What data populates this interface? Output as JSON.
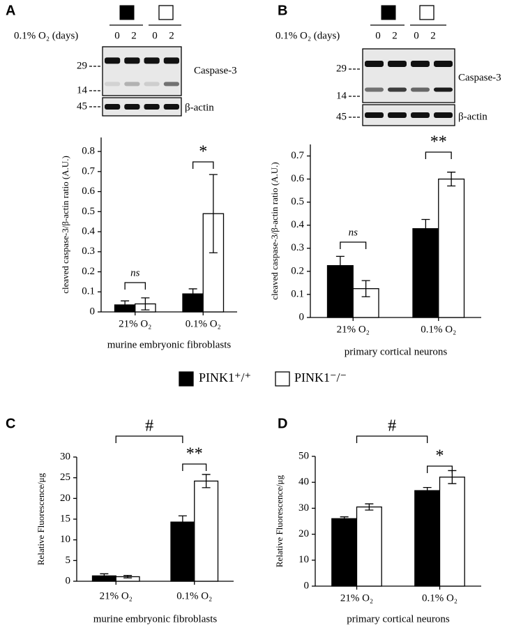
{
  "panel_letters": [
    "A",
    "B",
    "C",
    "D"
  ],
  "blots": [
    {
      "condition_label": "0.1% O₂ (days)",
      "lanes": [
        "0",
        "2",
        "0",
        "2"
      ],
      "bands": [
        "Caspase-3",
        "β-actin"
      ],
      "markers": [
        "29",
        "14",
        "45"
      ]
    },
    {
      "condition_label": "0.1% O₂ (days)",
      "lanes": [
        "0",
        "2",
        "0",
        "2"
      ],
      "bands": [
        "Caspase-3",
        "β-actin"
      ],
      "markers": [
        "29",
        "14",
        "45"
      ]
    }
  ],
  "chart_data": [
    {
      "type": "bar",
      "y_label": "cleaved caspase-3/β-actin ratio (A.U.)",
      "x_label": "murine embryonic fibroblasts",
      "categories": [
        "21% O₂",
        "0.1% O₂"
      ],
      "series": [
        {
          "name": "PINK1⁺/⁺",
          "color": "#000000",
          "values": [
            0.035,
            0.09
          ],
          "errors": [
            0.02,
            0.025
          ]
        },
        {
          "name": "PINK1⁻/⁻",
          "color": "#ffffff",
          "values": [
            0.04,
            0.49
          ],
          "errors": [
            0.03,
            0.195
          ]
        }
      ],
      "ylim": [
        0,
        0.87
      ],
      "yticks": [
        0,
        0.1,
        0.2,
        0.3,
        0.4,
        0.5,
        0.6,
        0.7,
        0.8
      ],
      "annotations": [
        "ns",
        "*"
      ]
    },
    {
      "type": "bar",
      "y_label": "cleaved caspase-3/β-actin ratio (A.U.)",
      "x_label": "primary cortical neurons",
      "categories": [
        "21% O₂",
        "0.1% O₂"
      ],
      "series": [
        {
          "name": "PINK1⁺/⁺",
          "color": "#000000",
          "values": [
            0.225,
            0.385
          ],
          "errors": [
            0.04,
            0.04
          ]
        },
        {
          "name": "PINK1⁻/⁻",
          "color": "#ffffff",
          "values": [
            0.125,
            0.6
          ],
          "errors": [
            0.035,
            0.03
          ]
        }
      ],
      "ylim": [
        0,
        0.75
      ],
      "yticks": [
        0,
        0.1,
        0.2,
        0.3,
        0.4,
        0.5,
        0.6,
        0.7
      ],
      "annotations": [
        "ns",
        "**"
      ]
    },
    {
      "type": "bar",
      "y_label": "Relative Fluorescence/μg",
      "x_label": "murine embryonic fibroblasts",
      "categories": [
        "21% O₂",
        "0.1% O₂"
      ],
      "series": [
        {
          "name": "PINK1⁺/⁺",
          "color": "#000000",
          "values": [
            1.3,
            14.3
          ],
          "errors": [
            0.5,
            1.5
          ]
        },
        {
          "name": "PINK1⁻/⁻",
          "color": "#ffffff",
          "values": [
            1.1,
            24.2
          ],
          "errors": [
            0.3,
            1.6
          ]
        }
      ],
      "ylim": [
        0,
        30
      ],
      "yticks": [
        0,
        5,
        10,
        15,
        20,
        25,
        30
      ],
      "annotations": [
        "#",
        "**"
      ]
    },
    {
      "type": "bar",
      "y_label": "Relative Fluorescence/μg",
      "x_label": "primary cortical neurons",
      "categories": [
        "21% O₂",
        "0.1% O₂"
      ],
      "series": [
        {
          "name": "PINK1⁺/⁺",
          "color": "#000000",
          "values": [
            26,
            36.8
          ],
          "errors": [
            0.7,
            1.2
          ]
        },
        {
          "name": "PINK1⁻/⁻",
          "color": "#ffffff",
          "values": [
            30.5,
            42
          ],
          "errors": [
            1.2,
            2.5
          ]
        }
      ],
      "ylim": [
        0,
        50
      ],
      "yticks": [
        0,
        10,
        20,
        30,
        40,
        50
      ],
      "annotations": [
        "#",
        "*"
      ]
    }
  ]
}
